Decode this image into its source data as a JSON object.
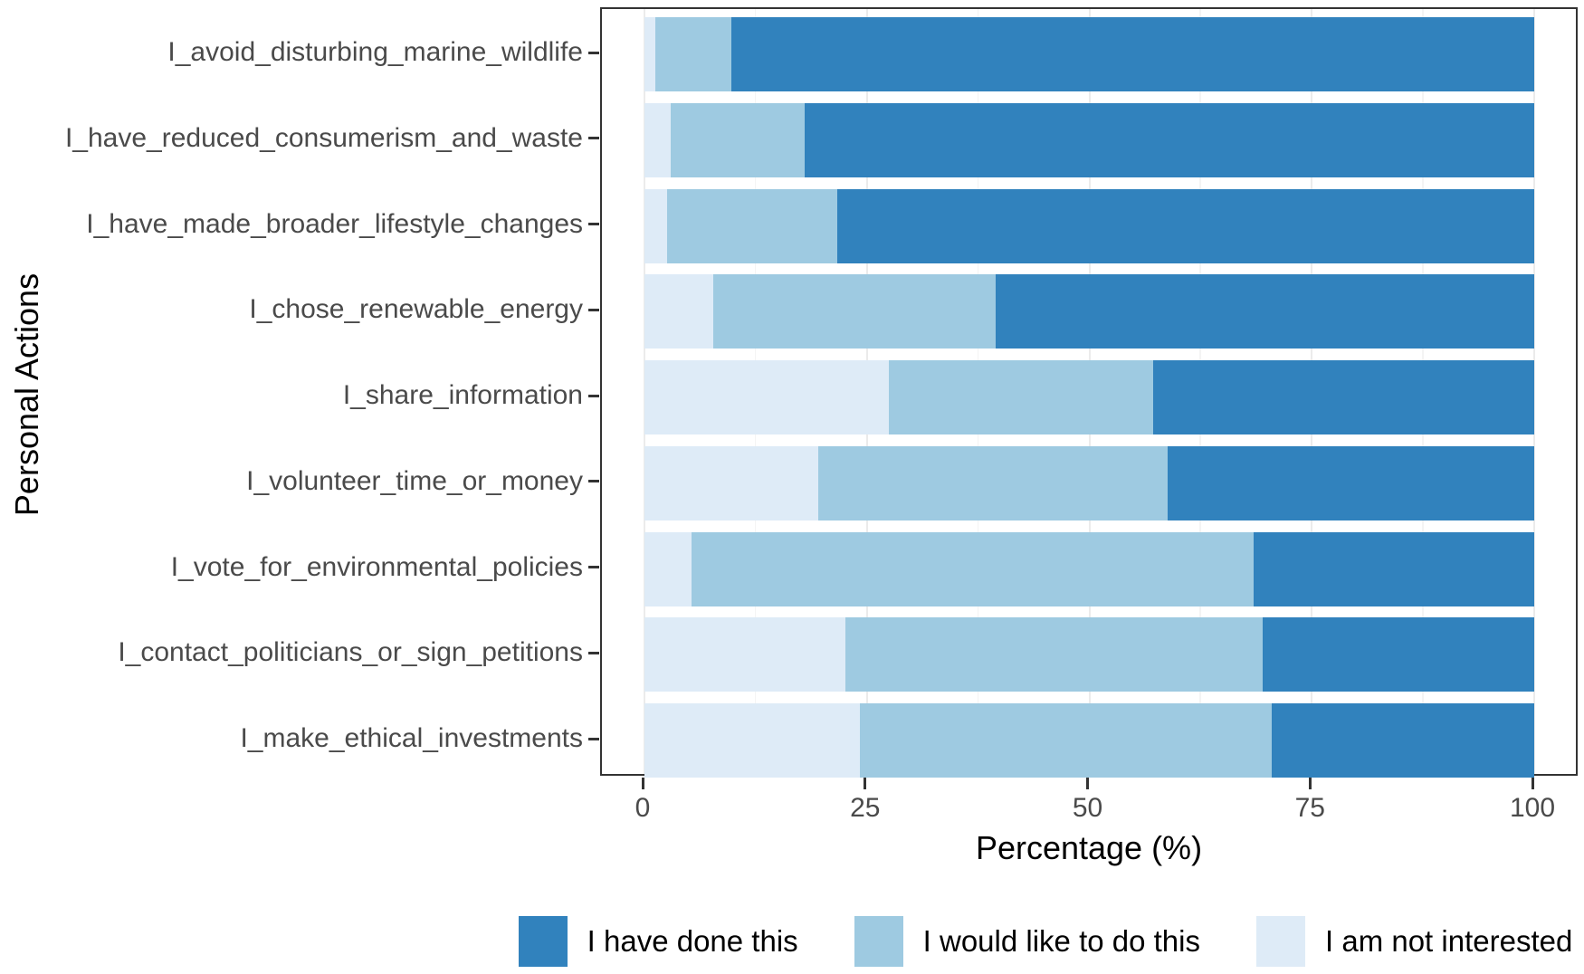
{
  "chart_data": {
    "type": "bar",
    "variant": "horizontal_stacked_percent",
    "title": "",
    "xlabel": "Percentage (%)",
    "ylabel": "Personal Actions",
    "xlim": [
      0,
      100
    ],
    "xticks": [
      0,
      25,
      50,
      75,
      100
    ],
    "minor_ticks": [
      12.5,
      37.5,
      62.5,
      87.5
    ],
    "grid": true,
    "legend_position": "bottom",
    "categories": [
      "I_avoid_disturbing_marine_wildlife",
      "I_have_reduced_consumerism_and_waste",
      "I_have_made_broader_lifestyle_changes",
      "I_chose_renewable_energy",
      "I_share_information",
      "I_volunteer_time_or_money",
      "I_vote_for_environmental_policies",
      "I_contact_politicians_or_sign_petitions",
      "I_make_ethical_investments"
    ],
    "series": [
      {
        "name": "I have done this",
        "color": "#3182BD",
        "values": [
          90.2,
          82.0,
          78.3,
          60.5,
          42.8,
          41.2,
          31.5,
          30.5,
          29.5
        ]
      },
      {
        "name": "I would like to do this",
        "color": "#9ECAE1",
        "values": [
          8.6,
          15.0,
          19.2,
          31.8,
          29.7,
          39.3,
          63.2,
          46.9,
          46.3
        ]
      },
      {
        "name": "I am not interested",
        "color": "#DEEBF7",
        "values": [
          1.2,
          3.0,
          2.5,
          7.7,
          27.5,
          19.5,
          5.3,
          22.6,
          24.2
        ]
      }
    ],
    "stack_left_to_right": [
      "I am not interested",
      "I would like to do this",
      "I have done this"
    ]
  },
  "colors": {
    "done": "#3182BD",
    "would_like": "#9ECAE1",
    "not_interested": "#DEEBF7",
    "grid_major": "#ebebeb",
    "panel_border": "#333333",
    "axis_text": "#4a4a4a",
    "axis_title": "#000000"
  }
}
